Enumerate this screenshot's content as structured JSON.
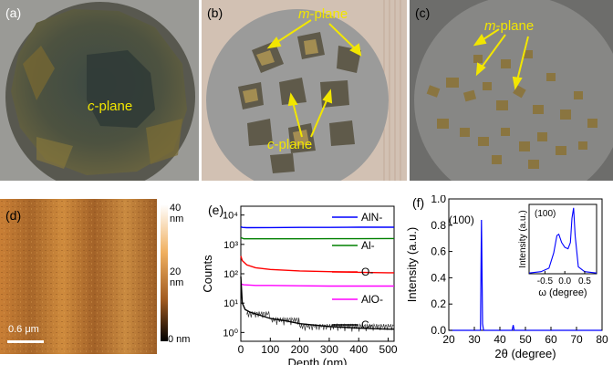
{
  "figure": {
    "panels": {
      "a": {
        "label": "(a)",
        "annotation": {
          "prefix": "c",
          "suffix": "-plane"
        }
      },
      "b": {
        "label": "(b)",
        "annotations": [
          {
            "prefix": "m",
            "suffix": "-plane"
          },
          {
            "prefix": "c",
            "suffix": "-plane"
          }
        ]
      },
      "c": {
        "label": "(c)",
        "annotation": {
          "prefix": "m",
          "suffix": "-plane"
        }
      },
      "d": {
        "label": "(d)",
        "scalebar": "0.6 μm",
        "colorbar_ticks": [
          "40 nm",
          "20 nm",
          "0 nm"
        ]
      },
      "e": {
        "label": "(e)"
      },
      "f": {
        "label": "(f)"
      }
    },
    "colors": {
      "annotation": "#f2e600",
      "arrow": "#f2e600"
    }
  },
  "chart_data": [
    {
      "type": "line",
      "panel": "e",
      "xlabel": "Depth (nm)",
      "ylabel": "Counts",
      "xlim": [
        0,
        520
      ],
      "ylim_log10": [
        -0.3,
        4.3
      ],
      "y_scale": "log",
      "x_ticks": [
        "0",
        "100",
        "200",
        "300",
        "400",
        "500"
      ],
      "y_ticks": [
        "10⁰",
        "10¹",
        "10²",
        "10³",
        "10⁴"
      ],
      "series": [
        {
          "name": "AlN-",
          "color": "#0000ff",
          "x": [
            0,
            5,
            20,
            100,
            200,
            300,
            400,
            500,
            520
          ],
          "y": [
            4000,
            3800,
            3700,
            3750,
            3800,
            3800,
            3850,
            3850,
            3850
          ]
        },
        {
          "name": "Al-",
          "color": "#008000",
          "x": [
            0,
            10,
            100,
            200,
            300,
            400,
            500,
            520
          ],
          "y": [
            1700,
            1550,
            1550,
            1550,
            1560,
            1560,
            1580,
            1580
          ]
        },
        {
          "name": "O-",
          "color": "#ff0000",
          "x": [
            0,
            5,
            20,
            50,
            100,
            200,
            300,
            400,
            500,
            520
          ],
          "y": [
            400,
            280,
            200,
            160,
            140,
            125,
            118,
            112,
            108,
            108
          ]
        },
        {
          "name": "AlO-",
          "color": "#ff00ff",
          "x": [
            0,
            10,
            50,
            100,
            200,
            300,
            400,
            500,
            520
          ],
          "y": [
            45,
            42,
            40,
            40,
            39,
            38,
            38,
            38,
            38
          ]
        },
        {
          "name": "C-",
          "color": "#000000",
          "x": [
            0,
            5,
            15,
            30,
            60,
            100,
            150,
            200,
            300,
            400,
            500,
            520
          ],
          "y": [
            80,
            10,
            6,
            5,
            4,
            3,
            2.5,
            2,
            1.6,
            1.4,
            1.3,
            1.3
          ]
        }
      ],
      "legend": "right"
    },
    {
      "type": "line",
      "panel": "f",
      "xlabel": "2θ (degree)",
      "ylabel": "Intensity (a.u.)",
      "xlim": [
        20,
        80
      ],
      "ylim": [
        0,
        1.0
      ],
      "x_ticks": [
        "20",
        "30",
        "40",
        "50",
        "60",
        "70",
        "80"
      ],
      "y_ticks": [
        "0.0",
        "0.2",
        "0.4",
        "0.6",
        "0.8",
        "1.0"
      ],
      "peak_label": "(100)",
      "x": [
        20,
        32.4,
        32.8,
        33.2,
        33.6,
        44.8,
        45.2,
        45.6,
        80
      ],
      "y": [
        0,
        0,
        0.84,
        0.05,
        0,
        0,
        0.04,
        0,
        0
      ],
      "inset": {
        "xlabel": "ω (degree)",
        "ylabel": "Intensity (a.u.)",
        "peak_label": "(100)",
        "xlim": [
          -0.9,
          0.8
        ],
        "x_ticks": [
          "-0.5",
          "0.0",
          "0.5"
        ],
        "x": [
          -0.9,
          -0.6,
          -0.4,
          -0.28,
          -0.2,
          -0.15,
          -0.08,
          0.0,
          0.08,
          0.14,
          0.18,
          0.22,
          0.26,
          0.34,
          0.5,
          0.8
        ],
        "y": [
          0.01,
          0.03,
          0.08,
          0.3,
          0.55,
          0.57,
          0.45,
          0.38,
          0.36,
          0.45,
          0.8,
          0.95,
          0.55,
          0.1,
          0.03,
          0.01
        ]
      }
    }
  ]
}
